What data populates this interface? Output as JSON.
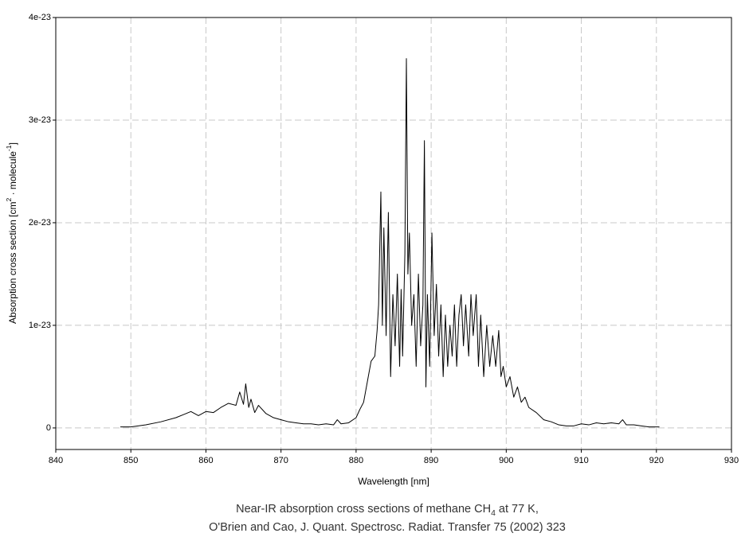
{
  "chart_data": {
    "type": "line",
    "xlabel": "Wavelength [nm]",
    "ylabel": [
      "Absorption cross section [cm",
      "2",
      " · molecule",
      "-1",
      "]"
    ],
    "caption": [
      [
        "Near-IR absorption cross sections of methane CH",
        "4",
        " at 77 K,"
      ],
      [
        "O'Brien and Cao, J. Quant. Spectrosc. Radiat. Transfer 75 (2002) 323"
      ]
    ],
    "xlim": [
      840,
      930
    ],
    "xticks": [
      840,
      850,
      860,
      870,
      880,
      890,
      900,
      910,
      920,
      930
    ],
    "ylim": [
      -2.1e-24,
      4e-23
    ],
    "yticks": [
      0,
      1e-23,
      2e-23,
      3e-23,
      4e-23
    ],
    "grid": true,
    "series": [
      {
        "color": "#000000",
        "x": [
          848.6,
          850,
          852,
          854,
          856,
          857,
          858,
          859,
          860,
          861,
          862,
          863,
          864,
          864.5,
          865,
          865.3,
          865.7,
          866,
          866.5,
          867,
          868,
          869,
          870,
          871,
          872,
          873,
          874,
          875,
          876,
          877,
          877.5,
          878,
          879,
          880,
          880.5,
          881,
          881.5,
          882,
          882.5,
          882.8,
          883,
          883.3,
          883.5,
          883.7,
          884,
          884.3,
          884.6,
          884.9,
          885.2,
          885.5,
          885.8,
          886,
          886.2,
          886.5,
          886.7,
          886.9,
          887.1,
          887.4,
          887.7,
          888,
          888.3,
          888.6,
          888.9,
          889.1,
          889.3,
          889.5,
          889.8,
          890.1,
          890.4,
          890.7,
          891,
          891.3,
          891.6,
          891.9,
          892.2,
          892.5,
          892.8,
          893.1,
          893.4,
          893.7,
          894,
          894.3,
          894.6,
          895,
          895.3,
          895.6,
          896,
          896.3,
          896.6,
          897,
          897.4,
          897.8,
          898.2,
          898.6,
          899,
          899.3,
          899.6,
          900,
          900.5,
          901,
          901.5,
          902,
          902.5,
          903,
          904,
          905,
          906,
          907,
          908,
          909,
          910,
          911,
          912,
          913,
          914,
          915,
          915.5,
          916,
          917,
          918,
          919,
          920.4
        ],
        "values": [
          1e-25,
          1e-25,
          3e-25,
          6e-25,
          1e-24,
          1.3e-24,
          1.6e-24,
          1.2e-24,
          1.6e-24,
          1.5e-24,
          2e-24,
          2.4e-24,
          2.2e-24,
          3.5e-24,
          2.3e-24,
          4.3e-24,
          2e-24,
          2.8e-24,
          1.5e-24,
          2.2e-24,
          1.4e-24,
          1e-24,
          8e-25,
          6e-25,
          5e-25,
          4e-25,
          4e-25,
          3e-25,
          4e-25,
          3e-25,
          8e-25,
          4e-25,
          5e-25,
          1e-24,
          1.8e-24,
          2.5e-24,
          4.5e-24,
          6.5e-24,
          7e-24,
          9.5e-24,
          1.2e-23,
          2.3e-23,
          1e-23,
          1.95e-23,
          9e-24,
          2.1e-23,
          5e-24,
          1.3e-23,
          8e-24,
          1.5e-23,
          6e-24,
          1.35e-23,
          7e-24,
          1.7e-23,
          3.6e-23,
          1.5e-23,
          1.9e-23,
          1e-23,
          1.3e-23,
          6e-24,
          1.5e-23,
          8e-24,
          1.2e-23,
          2.8e-23,
          4e-24,
          1.3e-23,
          6e-24,
          1.9e-23,
          9e-24,
          1.4e-23,
          7e-24,
          1.2e-23,
          5e-24,
          1.1e-23,
          6e-24,
          1e-23,
          7e-24,
          1.2e-23,
          6e-24,
          1.1e-23,
          1.3e-23,
          8e-24,
          1.2e-23,
          7e-24,
          1.3e-23,
          9e-24,
          1.3e-23,
          6e-24,
          1.1e-23,
          5e-24,
          1e-23,
          6e-24,
          9e-24,
          6e-24,
          9.5e-24,
          5e-24,
          6e-24,
          4e-24,
          5e-24,
          3e-24,
          4e-24,
          2.5e-24,
          3e-24,
          2e-24,
          1.5e-24,
          8e-25,
          6e-25,
          3e-25,
          2e-25,
          2e-25,
          4e-25,
          3e-25,
          5e-25,
          4e-25,
          5e-25,
          4e-25,
          8e-25,
          3e-25,
          3e-25,
          2e-25,
          1e-25,
          1e-25
        ]
      }
    ]
  }
}
